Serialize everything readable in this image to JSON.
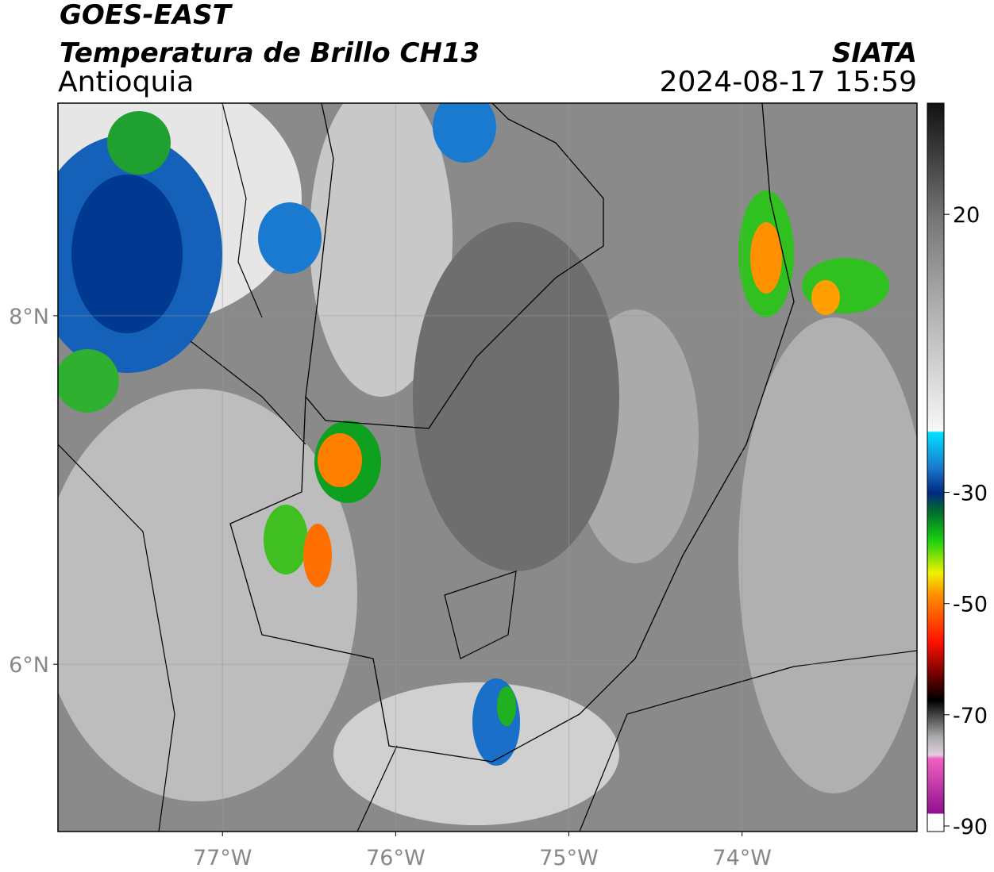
{
  "header": {
    "title": "GOES-EAST",
    "subtitle": "Temperatura de Brillo CH13",
    "region": "Antioquia",
    "source": "SIATA",
    "datetime": "2024-08-17 15:59"
  },
  "map": {
    "xlim": [
      -77.95,
      -72.99
    ],
    "ylim": [
      5.04,
      9.22
    ],
    "xticks": [
      {
        "value": -77,
        "label": "77°W"
      },
      {
        "value": -76,
        "label": "76°W"
      },
      {
        "value": -75,
        "label": "75°W"
      },
      {
        "value": -74,
        "label": "74°W"
      }
    ],
    "yticks": [
      {
        "value": 8,
        "label": "8°N"
      },
      {
        "value": 6,
        "label": "6°N"
      }
    ],
    "grid": true
  },
  "colorbar": {
    "lim": [
      -91,
      40
    ],
    "ticks": [
      20,
      -30,
      -50,
      -70,
      -90
    ]
  }
}
